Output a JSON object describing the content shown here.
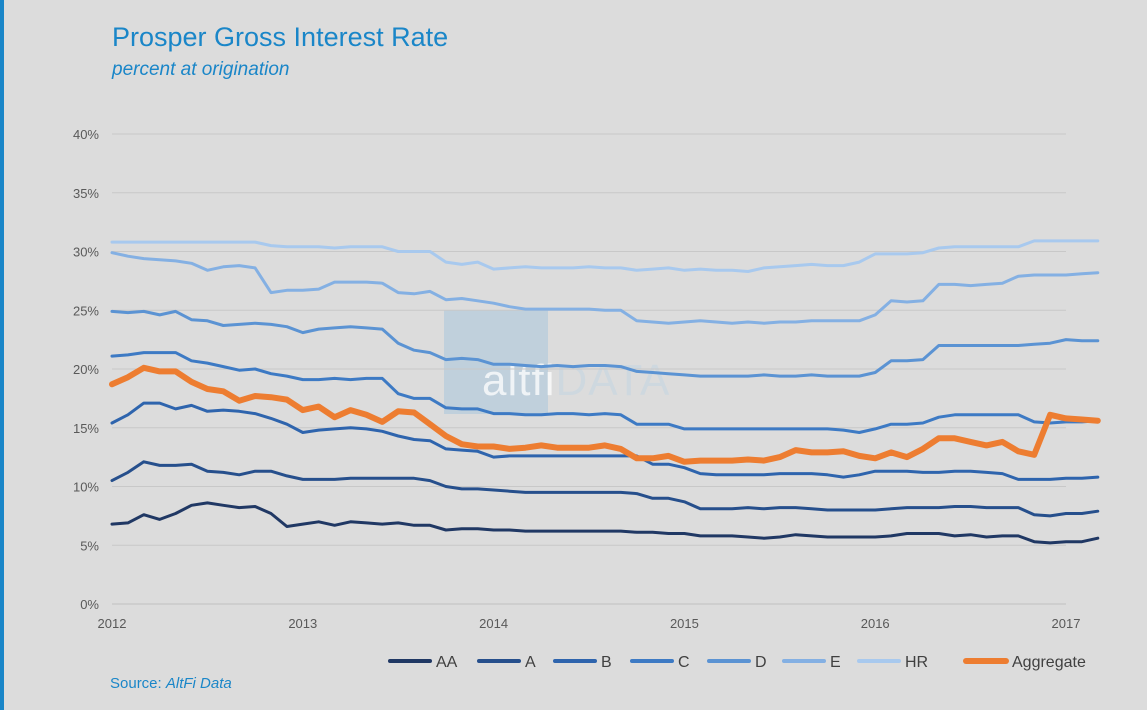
{
  "chart_data": {
    "type": "line",
    "title": "Prosper Gross Interest Rate",
    "subtitle": "percent at origination",
    "source_prefix": "Source: ",
    "source_name": "AltFi Data",
    "watermark": {
      "part1": "altfi",
      "part2": "DATA"
    },
    "xlabel": "",
    "ylabel": "",
    "xlim": [
      2012,
      2017
    ],
    "ylim": [
      0,
      40
    ],
    "x_ticks": [
      2012,
      2013,
      2014,
      2015,
      2016,
      2017
    ],
    "x_tick_labels": [
      "2012",
      "2013",
      "2014",
      "2015",
      "2016",
      "2017"
    ],
    "y_ticks": [
      0,
      5,
      10,
      15,
      20,
      25,
      30,
      35,
      40
    ],
    "y_tick_labels": [
      "0%",
      "5%",
      "10%",
      "15%",
      "20%",
      "25%",
      "30%",
      "35%",
      "40%"
    ],
    "grid": true,
    "legend_position": "bottom-right",
    "x_start": 2012,
    "x_step_months": 1,
    "series": [
      {
        "name": "AA",
        "color": "#203864",
        "width": 3,
        "values": [
          6.8,
          6.9,
          7.6,
          7.2,
          7.7,
          8.4,
          8.6,
          8.4,
          8.2,
          8.3,
          7.7,
          6.6,
          6.8,
          7.0,
          6.7,
          7.0,
          6.9,
          6.8,
          6.9,
          6.7,
          6.7,
          6.3,
          6.4,
          6.4,
          6.3,
          6.3,
          6.2,
          6.2,
          6.2,
          6.2,
          6.2,
          6.2,
          6.2,
          6.1,
          6.1,
          6.0,
          6.0,
          5.8,
          5.8,
          5.8,
          5.7,
          5.6,
          5.7,
          5.9,
          5.8,
          5.7,
          5.7,
          5.7,
          5.7,
          5.8,
          6.0,
          6.0,
          6.0,
          5.8,
          5.9,
          5.7,
          5.8,
          5.8,
          5.3,
          5.2,
          5.3,
          5.3,
          5.6
        ]
      },
      {
        "name": "A",
        "color": "#264f8c",
        "width": 3,
        "values": [
          10.5,
          11.2,
          12.1,
          11.8,
          11.8,
          11.9,
          11.3,
          11.2,
          11.0,
          11.3,
          11.3,
          10.9,
          10.6,
          10.6,
          10.6,
          10.7,
          10.7,
          10.7,
          10.7,
          10.7,
          10.5,
          10.0,
          9.8,
          9.8,
          9.7,
          9.6,
          9.5,
          9.5,
          9.5,
          9.5,
          9.5,
          9.5,
          9.5,
          9.4,
          9.0,
          9.0,
          8.7,
          8.1,
          8.1,
          8.1,
          8.2,
          8.1,
          8.2,
          8.2,
          8.1,
          8.0,
          8.0,
          8.0,
          8.0,
          8.1,
          8.2,
          8.2,
          8.2,
          8.3,
          8.3,
          8.2,
          8.2,
          8.2,
          7.6,
          7.5,
          7.7,
          7.7,
          7.9
        ]
      },
      {
        "name": "B",
        "color": "#2e64ad",
        "width": 3,
        "values": [
          15.4,
          16.1,
          17.1,
          17.1,
          16.6,
          16.9,
          16.4,
          16.5,
          16.4,
          16.2,
          15.8,
          15.3,
          14.6,
          14.8,
          14.9,
          15.0,
          14.9,
          14.7,
          14.3,
          14.0,
          13.9,
          13.2,
          13.1,
          13.0,
          12.5,
          12.6,
          12.6,
          12.6,
          12.6,
          12.6,
          12.6,
          12.6,
          12.6,
          12.6,
          11.9,
          11.9,
          11.6,
          11.1,
          11.0,
          11.0,
          11.0,
          11.0,
          11.1,
          11.1,
          11.1,
          11.0,
          10.8,
          11.0,
          11.3,
          11.3,
          11.3,
          11.2,
          11.2,
          11.3,
          11.3,
          11.2,
          11.1,
          10.6,
          10.6,
          10.6,
          10.7,
          10.7,
          10.8
        ]
      },
      {
        "name": "C",
        "color": "#3d7ac4",
        "width": 3,
        "values": [
          21.1,
          21.2,
          21.4,
          21.4,
          21.4,
          20.7,
          20.5,
          20.2,
          19.9,
          20.0,
          19.6,
          19.4,
          19.1,
          19.1,
          19.2,
          19.1,
          19.2,
          19.2,
          17.9,
          17.5,
          17.5,
          16.7,
          16.6,
          16.6,
          16.2,
          16.2,
          16.1,
          16.1,
          16.2,
          16.2,
          16.1,
          16.2,
          16.1,
          15.3,
          15.3,
          15.3,
          14.9,
          14.9,
          14.9,
          14.9,
          14.9,
          14.9,
          14.9,
          14.9,
          14.9,
          14.9,
          14.8,
          14.6,
          14.9,
          15.3,
          15.3,
          15.4,
          15.9,
          16.1,
          16.1,
          16.1,
          16.1,
          16.1,
          15.5,
          15.4,
          15.5,
          15.5,
          15.6
        ]
      },
      {
        "name": "D",
        "color": "#5b93d3",
        "width": 3,
        "values": [
          24.9,
          24.8,
          24.9,
          24.6,
          24.9,
          24.2,
          24.1,
          23.7,
          23.8,
          23.9,
          23.8,
          23.6,
          23.1,
          23.4,
          23.5,
          23.6,
          23.5,
          23.4,
          22.2,
          21.6,
          21.4,
          20.8,
          20.9,
          20.8,
          20.4,
          20.4,
          20.3,
          20.2,
          20.3,
          20.2,
          20.3,
          20.3,
          20.2,
          19.8,
          19.7,
          19.6,
          19.5,
          19.4,
          19.4,
          19.4,
          19.4,
          19.5,
          19.4,
          19.4,
          19.5,
          19.4,
          19.4,
          19.4,
          19.7,
          20.7,
          20.7,
          20.8,
          22.0,
          22.0,
          22.0,
          22.0,
          22.0,
          22.0,
          22.1,
          22.2,
          22.5,
          22.4,
          22.4
        ]
      },
      {
        "name": "E",
        "color": "#84b0e3",
        "width": 3,
        "values": [
          29.9,
          29.6,
          29.4,
          29.3,
          29.2,
          29.0,
          28.4,
          28.7,
          28.8,
          28.6,
          26.5,
          26.7,
          26.7,
          26.8,
          27.4,
          27.4,
          27.4,
          27.3,
          26.5,
          26.4,
          26.6,
          25.9,
          26.0,
          25.8,
          25.6,
          25.3,
          25.1,
          25.1,
          25.1,
          25.1,
          25.1,
          25.0,
          25.0,
          24.1,
          24.0,
          23.9,
          24.0,
          24.1,
          24.0,
          23.9,
          24.0,
          23.9,
          24.0,
          24.0,
          24.1,
          24.1,
          24.1,
          24.1,
          24.6,
          25.8,
          25.7,
          25.8,
          27.2,
          27.2,
          27.1,
          27.2,
          27.3,
          27.9,
          28.0,
          28.0,
          28.0,
          28.1,
          28.2
        ]
      },
      {
        "name": "HR",
        "color": "#a8c9ee",
        "width": 3,
        "values": [
          30.8,
          30.8,
          30.8,
          30.8,
          30.8,
          30.8,
          30.8,
          30.8,
          30.8,
          30.8,
          30.5,
          30.4,
          30.4,
          30.4,
          30.3,
          30.4,
          30.4,
          30.4,
          30.0,
          30.0,
          30.0,
          29.1,
          28.9,
          29.1,
          28.5,
          28.6,
          28.7,
          28.6,
          28.6,
          28.6,
          28.7,
          28.6,
          28.6,
          28.4,
          28.5,
          28.6,
          28.4,
          28.5,
          28.4,
          28.4,
          28.3,
          28.6,
          28.7,
          28.8,
          28.9,
          28.8,
          28.8,
          29.1,
          29.8,
          29.8,
          29.8,
          29.9,
          30.3,
          30.4,
          30.4,
          30.4,
          30.4,
          30.4,
          30.9,
          30.9,
          30.9,
          30.9,
          30.9
        ]
      },
      {
        "name": "Aggregate",
        "color": "#ed7d31",
        "width": 6,
        "values": [
          18.7,
          19.3,
          20.1,
          19.8,
          19.8,
          18.9,
          18.3,
          18.1,
          17.3,
          17.7,
          17.6,
          17.4,
          16.5,
          16.8,
          15.9,
          16.5,
          16.1,
          15.5,
          16.4,
          16.3,
          15.3,
          14.3,
          13.6,
          13.4,
          13.4,
          13.2,
          13.3,
          13.5,
          13.3,
          13.3,
          13.3,
          13.5,
          13.2,
          12.4,
          12.4,
          12.6,
          12.1,
          12.2,
          12.2,
          12.2,
          12.3,
          12.2,
          12.5,
          13.1,
          12.9,
          12.9,
          13.0,
          12.6,
          12.4,
          12.9,
          12.5,
          13.2,
          14.1,
          14.1,
          13.8,
          13.5,
          13.8,
          13.0,
          12.7,
          16.1,
          15.8,
          15.7,
          15.6
        ]
      }
    ]
  }
}
